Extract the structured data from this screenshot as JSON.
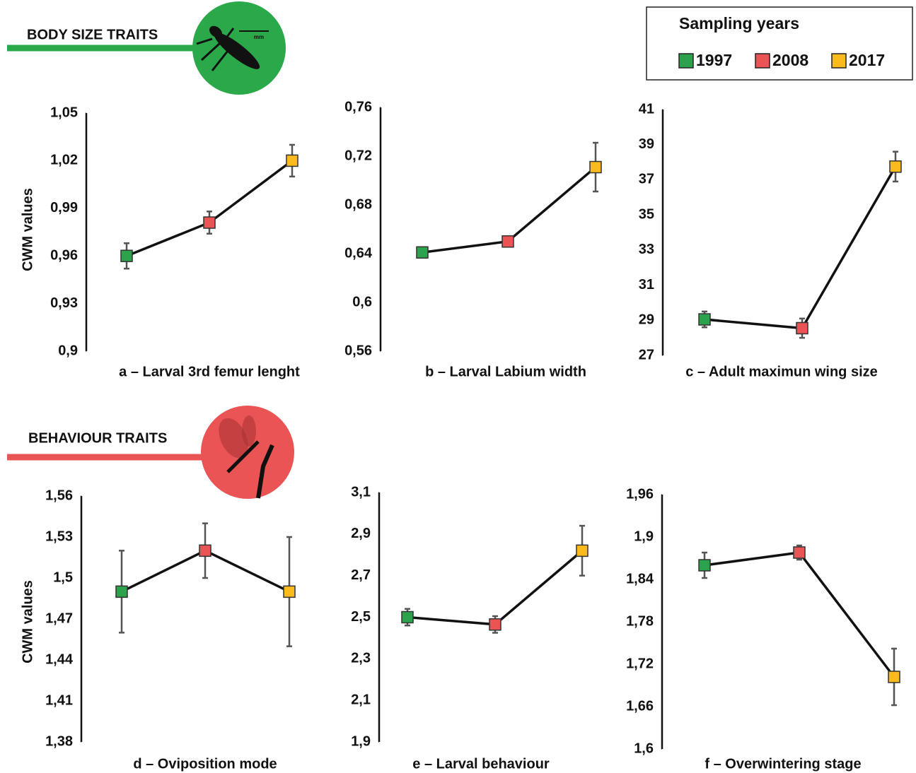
{
  "legend": {
    "title": "Sampling years",
    "series": [
      {
        "name": "1997",
        "color": "#2ca24c"
      },
      {
        "name": "2008",
        "color": "#ea5455"
      },
      {
        "name": "2017",
        "color": "#fbbb1c"
      }
    ]
  },
  "sections": [
    {
      "label": "BODY SIZE TRAITS",
      "color": "#2ba84a",
      "icon_text": "mm"
    },
    {
      "label": "BEHAVIOUR TRAITS",
      "color": "#ea5455"
    }
  ],
  "chart_data": [
    {
      "type": "line",
      "title": "a – Larval 3rd femur lenght",
      "ylabel": "CWM values",
      "values": [
        0.96,
        0.981,
        1.02
      ],
      "errors": [
        0.008,
        0.007,
        0.01
      ],
      "ylim": [
        0.9,
        1.05
      ],
      "yticks": [
        {
          "value": 0.9,
          "label": "0,9"
        },
        {
          "value": 0.93,
          "label": "0,93"
        },
        {
          "value": 0.96,
          "label": "0,96"
        },
        {
          "value": 0.99,
          "label": "0,99"
        },
        {
          "value": 1.02,
          "label": "1,02"
        },
        {
          "value": 1.05,
          "label": "1,05"
        }
      ]
    },
    {
      "type": "line",
      "title": "b – Larval Labium width",
      "values": [
        0.641,
        0.65,
        0.711
      ],
      "errors": [
        0.004,
        0.004,
        0.02
      ],
      "ylim": [
        0.56,
        0.76
      ],
      "yticks": [
        {
          "value": 0.56,
          "label": "0,56"
        },
        {
          "value": 0.6,
          "label": "0,6"
        },
        {
          "value": 0.64,
          "label": "0,64"
        },
        {
          "value": 0.68,
          "label": "0,68"
        },
        {
          "value": 0.72,
          "label": "0,72"
        },
        {
          "value": 0.76,
          "label": "0,76"
        }
      ]
    },
    {
      "type": "line",
      "title": "c – Adult maximun wing size",
      "values": [
        29.05,
        28.55,
        37.75
      ],
      "errors": [
        0.45,
        0.55,
        0.85
      ],
      "ylim": [
        27,
        41
      ],
      "yticks": [
        27,
        29,
        31,
        33,
        35,
        37,
        39,
        41
      ]
    },
    {
      "type": "line",
      "title": "d – Oviposition mode",
      "ylabel": "CWM values",
      "values": [
        1.49,
        1.52,
        1.49
      ],
      "errors": [
        0.03,
        0.02,
        0.04
      ],
      "ylim": [
        1.38,
        1.56
      ],
      "yticks": [
        {
          "value": 1.38,
          "label": "1,38"
        },
        {
          "value": 1.41,
          "label": "1,41"
        },
        {
          "value": 1.44,
          "label": "1,44"
        },
        {
          "value": 1.47,
          "label": "1,47"
        },
        {
          "value": 1.5,
          "label": "1,5"
        },
        {
          "value": 1.53,
          "label": "1,53"
        },
        {
          "value": 1.56,
          "label": "1,56"
        }
      ]
    },
    {
      "type": "line",
      "title": "e – Larval behaviour",
      "values": [
        2.5,
        2.465,
        2.82
      ],
      "errors": [
        0.04,
        0.04,
        0.12
      ],
      "ylim": [
        1.9,
        3.1
      ],
      "yticks": [
        {
          "value": 1.9,
          "label": "1,9"
        },
        {
          "value": 2.1,
          "label": "2,1"
        },
        {
          "value": 2.3,
          "label": "2,3"
        },
        {
          "value": 2.5,
          "label": "2,5"
        },
        {
          "value": 2.7,
          "label": "2,7"
        },
        {
          "value": 2.9,
          "label": "2,9"
        },
        {
          "value": 3.1,
          "label": "3,1"
        }
      ]
    },
    {
      "type": "line",
      "title": "f – Overwintering stage",
      "values": [
        1.86,
        1.878,
        1.702
      ],
      "errors": [
        0.018,
        0.01,
        0.04
      ],
      "ylim": [
        1.6,
        1.96
      ],
      "yticks": [
        {
          "value": 1.6,
          "label": "1,6"
        },
        {
          "value": 1.66,
          "label": "1,66"
        },
        {
          "value": 1.72,
          "label": "1,72"
        },
        {
          "value": 1.78,
          "label": "1,78"
        },
        {
          "value": 1.84,
          "label": "1,84"
        },
        {
          "value": 1.9,
          "label": "1,9"
        },
        {
          "value": 1.96,
          "label": "1,96"
        }
      ]
    }
  ]
}
